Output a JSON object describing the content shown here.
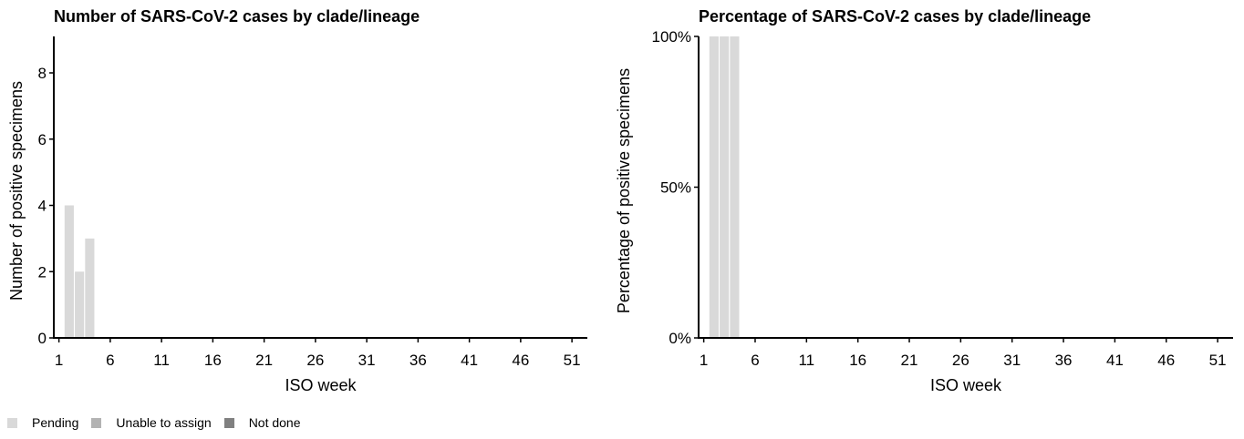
{
  "chart_data": [
    {
      "type": "bar",
      "stacked": true,
      "title": "Number of SARS-CoV-2 cases by clade/lineage",
      "xlabel": "ISO week",
      "ylabel": "Number of positive specimens",
      "x_ticks": [
        "1",
        "6",
        "11",
        "16",
        "21",
        "26",
        "31",
        "36",
        "41",
        "46",
        "51"
      ],
      "y_ticks": [
        "0",
        "2",
        "4",
        "6",
        "8"
      ],
      "xlim": [
        0.5,
        52.5
      ],
      "ylim": [
        0,
        9.1
      ],
      "categories": [
        2,
        3,
        4
      ],
      "series": [
        {
          "name": "Pending",
          "color": "#d9d9d9",
          "values": [
            4,
            2,
            3
          ]
        },
        {
          "name": "Unable to assign",
          "color": "#b3b3b3",
          "values": [
            0,
            0,
            0
          ]
        },
        {
          "name": "Not done",
          "color": "#808080",
          "values": [
            0,
            0,
            0
          ]
        }
      ]
    },
    {
      "type": "bar",
      "stacked": true,
      "title": "Percentage of SARS-CoV-2 cases by clade/lineage",
      "xlabel": "ISO week",
      "ylabel": "Percentage of positive specimens",
      "x_ticks": [
        "1",
        "6",
        "11",
        "16",
        "21",
        "26",
        "31",
        "36",
        "41",
        "46",
        "51"
      ],
      "y_ticks": [
        "0%",
        "50%",
        "100%"
      ],
      "xlim": [
        0.5,
        52.5
      ],
      "ylim": [
        0,
        100
      ],
      "categories": [
        2,
        3,
        4
      ],
      "series": [
        {
          "name": "Pending",
          "color": "#d9d9d9",
          "values": [
            100,
            100,
            100
          ]
        },
        {
          "name": "Unable to assign",
          "color": "#b3b3b3",
          "values": [
            0,
            0,
            0
          ]
        },
        {
          "name": "Not done",
          "color": "#808080",
          "values": [
            0,
            0,
            0
          ]
        }
      ]
    }
  ],
  "legend": {
    "items": [
      {
        "label": "Pending",
        "color": "#d9d9d9"
      },
      {
        "label": "Unable to assign",
        "color": "#b3b3b3"
      },
      {
        "label": "Not done",
        "color": "#808080"
      }
    ]
  }
}
